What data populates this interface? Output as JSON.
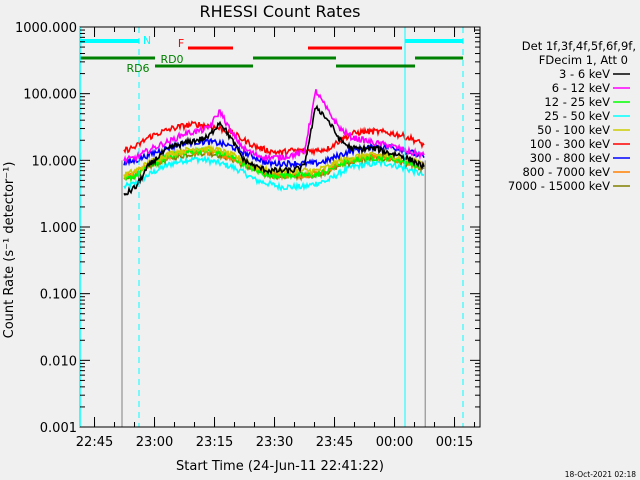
{
  "chart_data": {
    "type": "line",
    "title": "RHESSI Count Rates",
    "xlabel": "Start Time (24-Jun-11 22:41:22)",
    "ylabel": "Count Rate (s⁻¹ detector⁻¹)",
    "yscale": "log",
    "ylim": [
      0.001,
      1000
    ],
    "xlim_minutes_from_start": [
      0,
      100
    ],
    "x_tick_labels": [
      {
        "label": "22:45",
        "t": 3.63
      },
      {
        "label": "23:00",
        "t": 18.63
      },
      {
        "label": "23:15",
        "t": 33.63
      },
      {
        "label": "23:30",
        "t": 48.63
      },
      {
        "label": "23:45",
        "t": 63.63
      },
      {
        "label": "00:00",
        "t": 78.63
      },
      {
        "label": "00:15",
        "t": 93.63
      }
    ],
    "y_tick_labels": [
      "1000.000",
      "100.000",
      "10.000",
      "1.000",
      "0.100",
      "0.010",
      "0.001"
    ],
    "legend_header": [
      "Det 1f,3f,4f,5f,6f,9f,",
      "FDecim 1, Att 0"
    ],
    "legend_position": "right",
    "t": [
      11,
      14,
      17,
      20,
      23,
      26,
      29,
      32,
      35,
      38,
      41,
      44,
      47,
      50,
      53,
      56,
      59,
      62,
      65,
      68,
      71,
      74,
      77,
      80,
      83,
      86
    ],
    "series": [
      {
        "name": "3 - 6 keV",
        "color": "#000000",
        "values": [
          3,
          4,
          8,
          12,
          16,
          18,
          20,
          22,
          38,
          20,
          10,
          8,
          7,
          7,
          7,
          8,
          65,
          40,
          20,
          15,
          15,
          15,
          13,
          12,
          10,
          8
        ]
      },
      {
        "name": "6 - 12 keV",
        "color": "#ff00ff",
        "values": [
          10,
          11,
          14,
          17,
          20,
          25,
          27,
          30,
          55,
          25,
          15,
          12,
          11,
          11,
          12,
          13,
          110,
          55,
          30,
          22,
          20,
          18,
          17,
          15,
          13,
          12
        ]
      },
      {
        "name": "12 - 25 keV",
        "color": "#00ff00",
        "values": [
          5,
          6,
          8,
          10,
          12,
          13,
          14,
          14,
          13,
          11,
          9,
          7,
          6,
          6,
          6,
          6,
          6,
          7,
          9,
          10,
          11,
          11,
          11,
          10,
          9,
          8
        ]
      },
      {
        "name": "25 - 50 keV",
        "color": "#00ffff",
        "values": [
          4,
          4.5,
          6,
          7.5,
          9,
          10,
          10.5,
          10,
          9,
          8,
          6.5,
          5,
          4.5,
          4,
          4,
          4,
          4.5,
          5,
          6.5,
          8,
          8.5,
          9,
          9,
          8,
          7,
          6
        ]
      },
      {
        "name": "50 - 100 keV",
        "color": "#cccc00",
        "values": [
          6,
          7,
          9,
          11,
          13,
          14,
          15,
          15,
          14,
          12,
          10,
          8,
          7,
          7,
          7,
          7,
          7,
          8,
          10,
          11,
          12,
          12,
          12,
          11,
          10,
          9
        ]
      },
      {
        "name": "100 - 300 keV",
        "color": "#ff0000",
        "values": [
          14,
          16,
          22,
          26,
          30,
          33,
          35,
          33,
          30,
          26,
          20,
          16,
          14,
          13,
          14,
          14,
          14,
          15,
          20,
          25,
          27,
          27,
          26,
          24,
          21,
          17
        ]
      },
      {
        "name": "300 - 800 keV",
        "color": "#0000ff",
        "values": [
          9,
          10,
          12,
          14,
          16,
          18,
          19,
          19,
          18,
          16,
          13,
          11,
          9,
          9,
          9,
          9,
          9,
          10,
          12,
          14,
          15,
          16,
          16,
          15,
          13,
          11
        ]
      },
      {
        "name": "800 - 7000 keV",
        "color": "#ff8000",
        "values": [
          5.5,
          6.5,
          8.5,
          10,
          12,
          13,
          13.5,
          13.5,
          12.5,
          11,
          9,
          7.5,
          6.5,
          6,
          6,
          6,
          6.5,
          7,
          9,
          10,
          11,
          11.5,
          11,
          10,
          9,
          8
        ]
      },
      {
        "name": "7000 - 15000 keV",
        "color": "#808000",
        "values": [
          5,
          6,
          8,
          9.5,
          11,
          12,
          13,
          13,
          12,
          10.5,
          8.5,
          7,
          6,
          5.8,
          5.8,
          5.8,
          6.2,
          6.8,
          8.5,
          9.5,
          10.5,
          11,
          10.5,
          9.5,
          8.5,
          7.5
        ]
      }
    ],
    "state_bars": [
      {
        "label": "N",
        "color": "#00ffff",
        "level": 1,
        "segments": [
          [
            0,
            14.75
          ],
          [
            81.25,
            95.75
          ]
        ]
      },
      {
        "label": "F",
        "color": "#ff0000",
        "level": 2,
        "segments": [
          [
            27,
            38.25
          ],
          [
            57,
            80.5
          ]
        ]
      },
      {
        "label": "RD6",
        "color": "#008000",
        "level": 3,
        "segments": [
          [
            0,
            18.75
          ],
          [
            43.25,
            64
          ],
          [
            83.75,
            95.75
          ]
        ]
      },
      {
        "label": "RD0",
        "color": "#008000",
        "level": 4,
        "segments": [
          [
            18.75,
            43.25
          ],
          [
            64,
            83.75
          ]
        ]
      }
    ],
    "vertical_markers": [
      {
        "t": 14.75,
        "color": "#00ffff",
        "style": "dashed"
      },
      {
        "t": 81.25,
        "color": "#00ffff",
        "style": "solid"
      },
      {
        "t": 95.75,
        "color": "#00ffff",
        "style": "dashed"
      },
      {
        "t": 10.5,
        "color": "#808080",
        "style": "solid",
        "from": 0.04
      },
      {
        "t": 86.3,
        "color": "#808080",
        "style": "solid",
        "from": 0.005
      }
    ]
  },
  "footer": {
    "timestamp": "18-Oct-2021 02:18"
  }
}
